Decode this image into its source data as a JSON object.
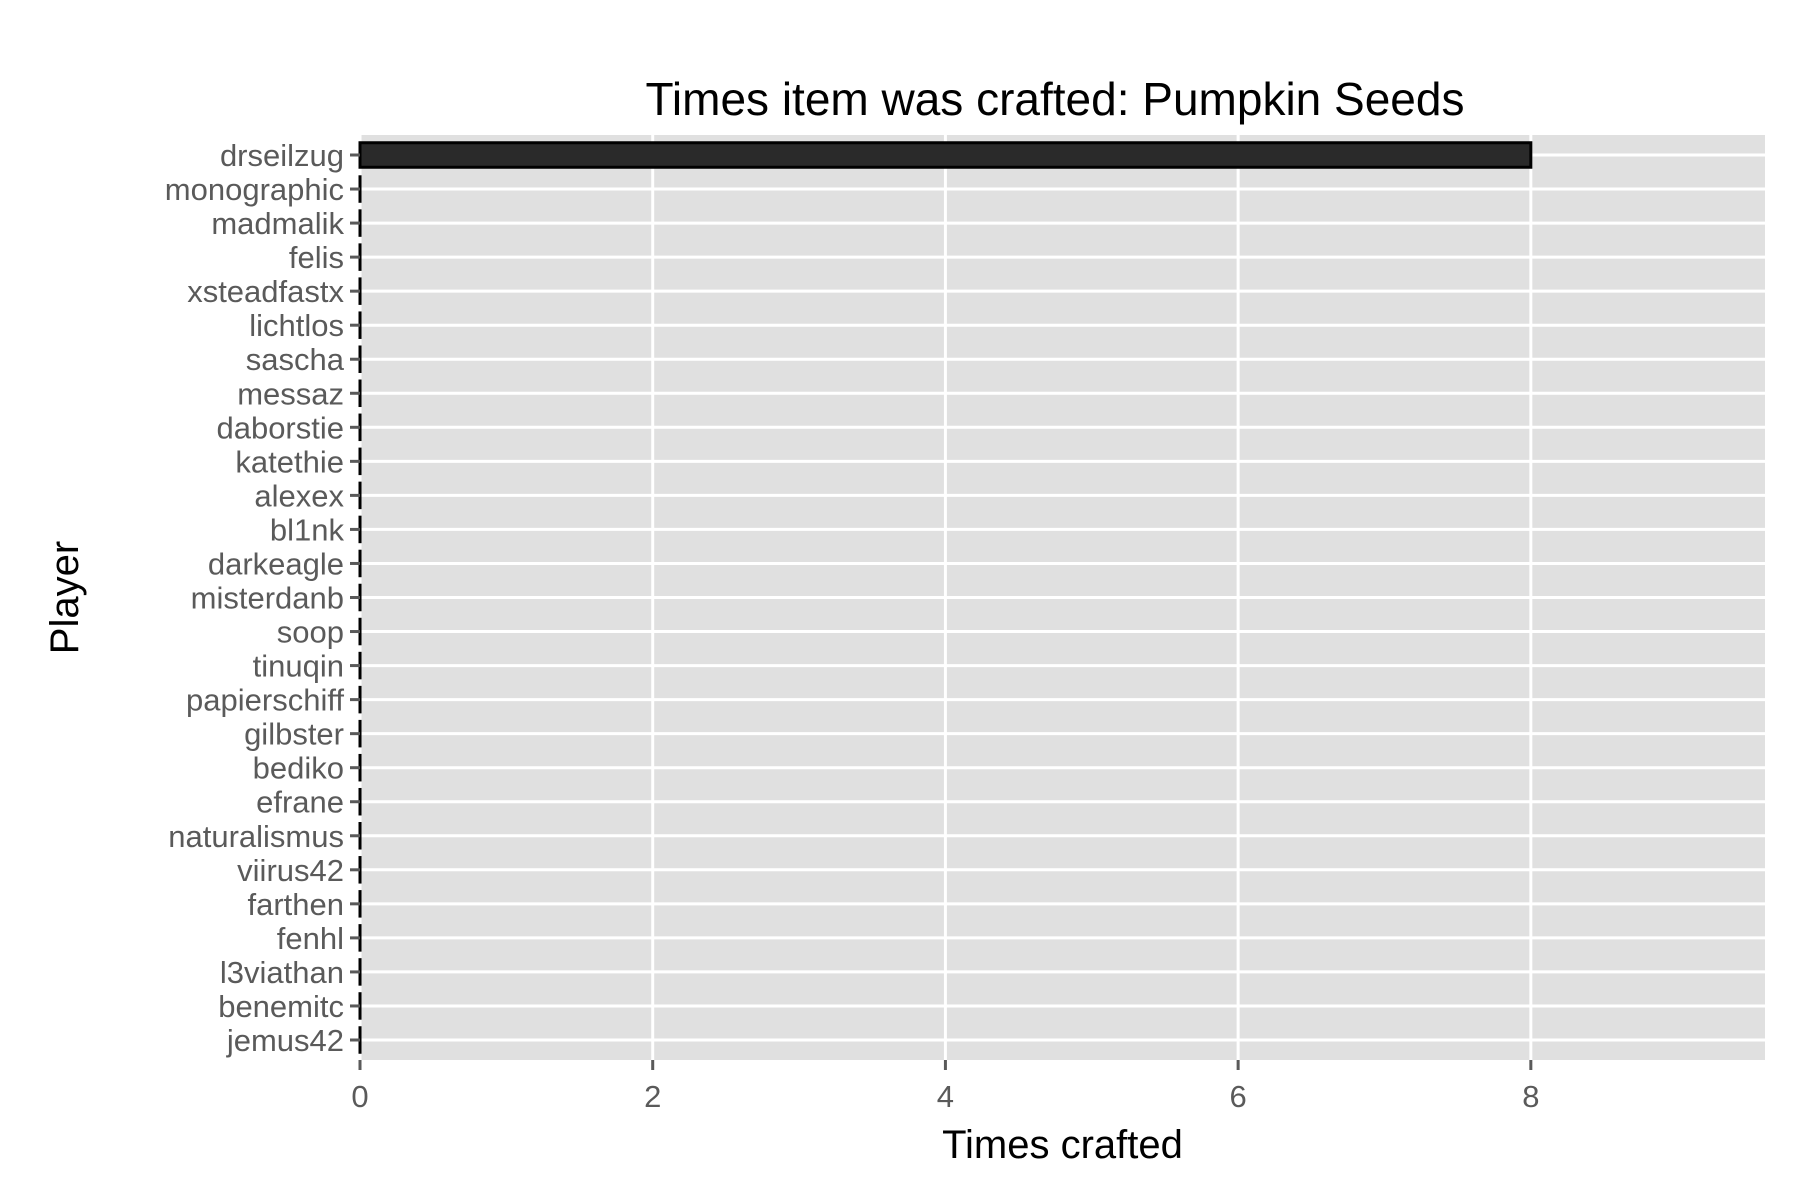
{
  "chart_data": {
    "type": "bar",
    "orientation": "horizontal",
    "title": "Times item was crafted: Pumpkin Seeds",
    "xlabel": "Times crafted",
    "ylabel": "Player",
    "xlim": [
      0,
      9.6
    ],
    "xticks": [
      0,
      2,
      4,
      6,
      8
    ],
    "grid": true,
    "categories": [
      "drseilzug",
      "monographic",
      "madmalik",
      "felis",
      "xsteadfastx",
      "lichtlos",
      "sascha",
      "messaz",
      "daborstie",
      "katethie",
      "alexex",
      "bl1nk",
      "darkeagle",
      "misterdanb",
      "soop",
      "tinuqin",
      "papierschiff",
      "gilbster",
      "bediko",
      "efrane",
      "naturalismus",
      "viirus42",
      "farthen",
      "fenhl",
      "l3viathan",
      "benemitc",
      "jemus42"
    ],
    "values": [
      8,
      0,
      0,
      0,
      0,
      0,
      0,
      0,
      0,
      0,
      0,
      0,
      0,
      0,
      0,
      0,
      0,
      0,
      0,
      0,
      0,
      0,
      0,
      0,
      0,
      0,
      0
    ],
    "colors": {
      "panel": "#e0e0e0",
      "grid": "#ffffff",
      "bar_fill": "#2a2a2a",
      "bar_stroke": "#000000",
      "tick": "#5a5a5a"
    }
  }
}
